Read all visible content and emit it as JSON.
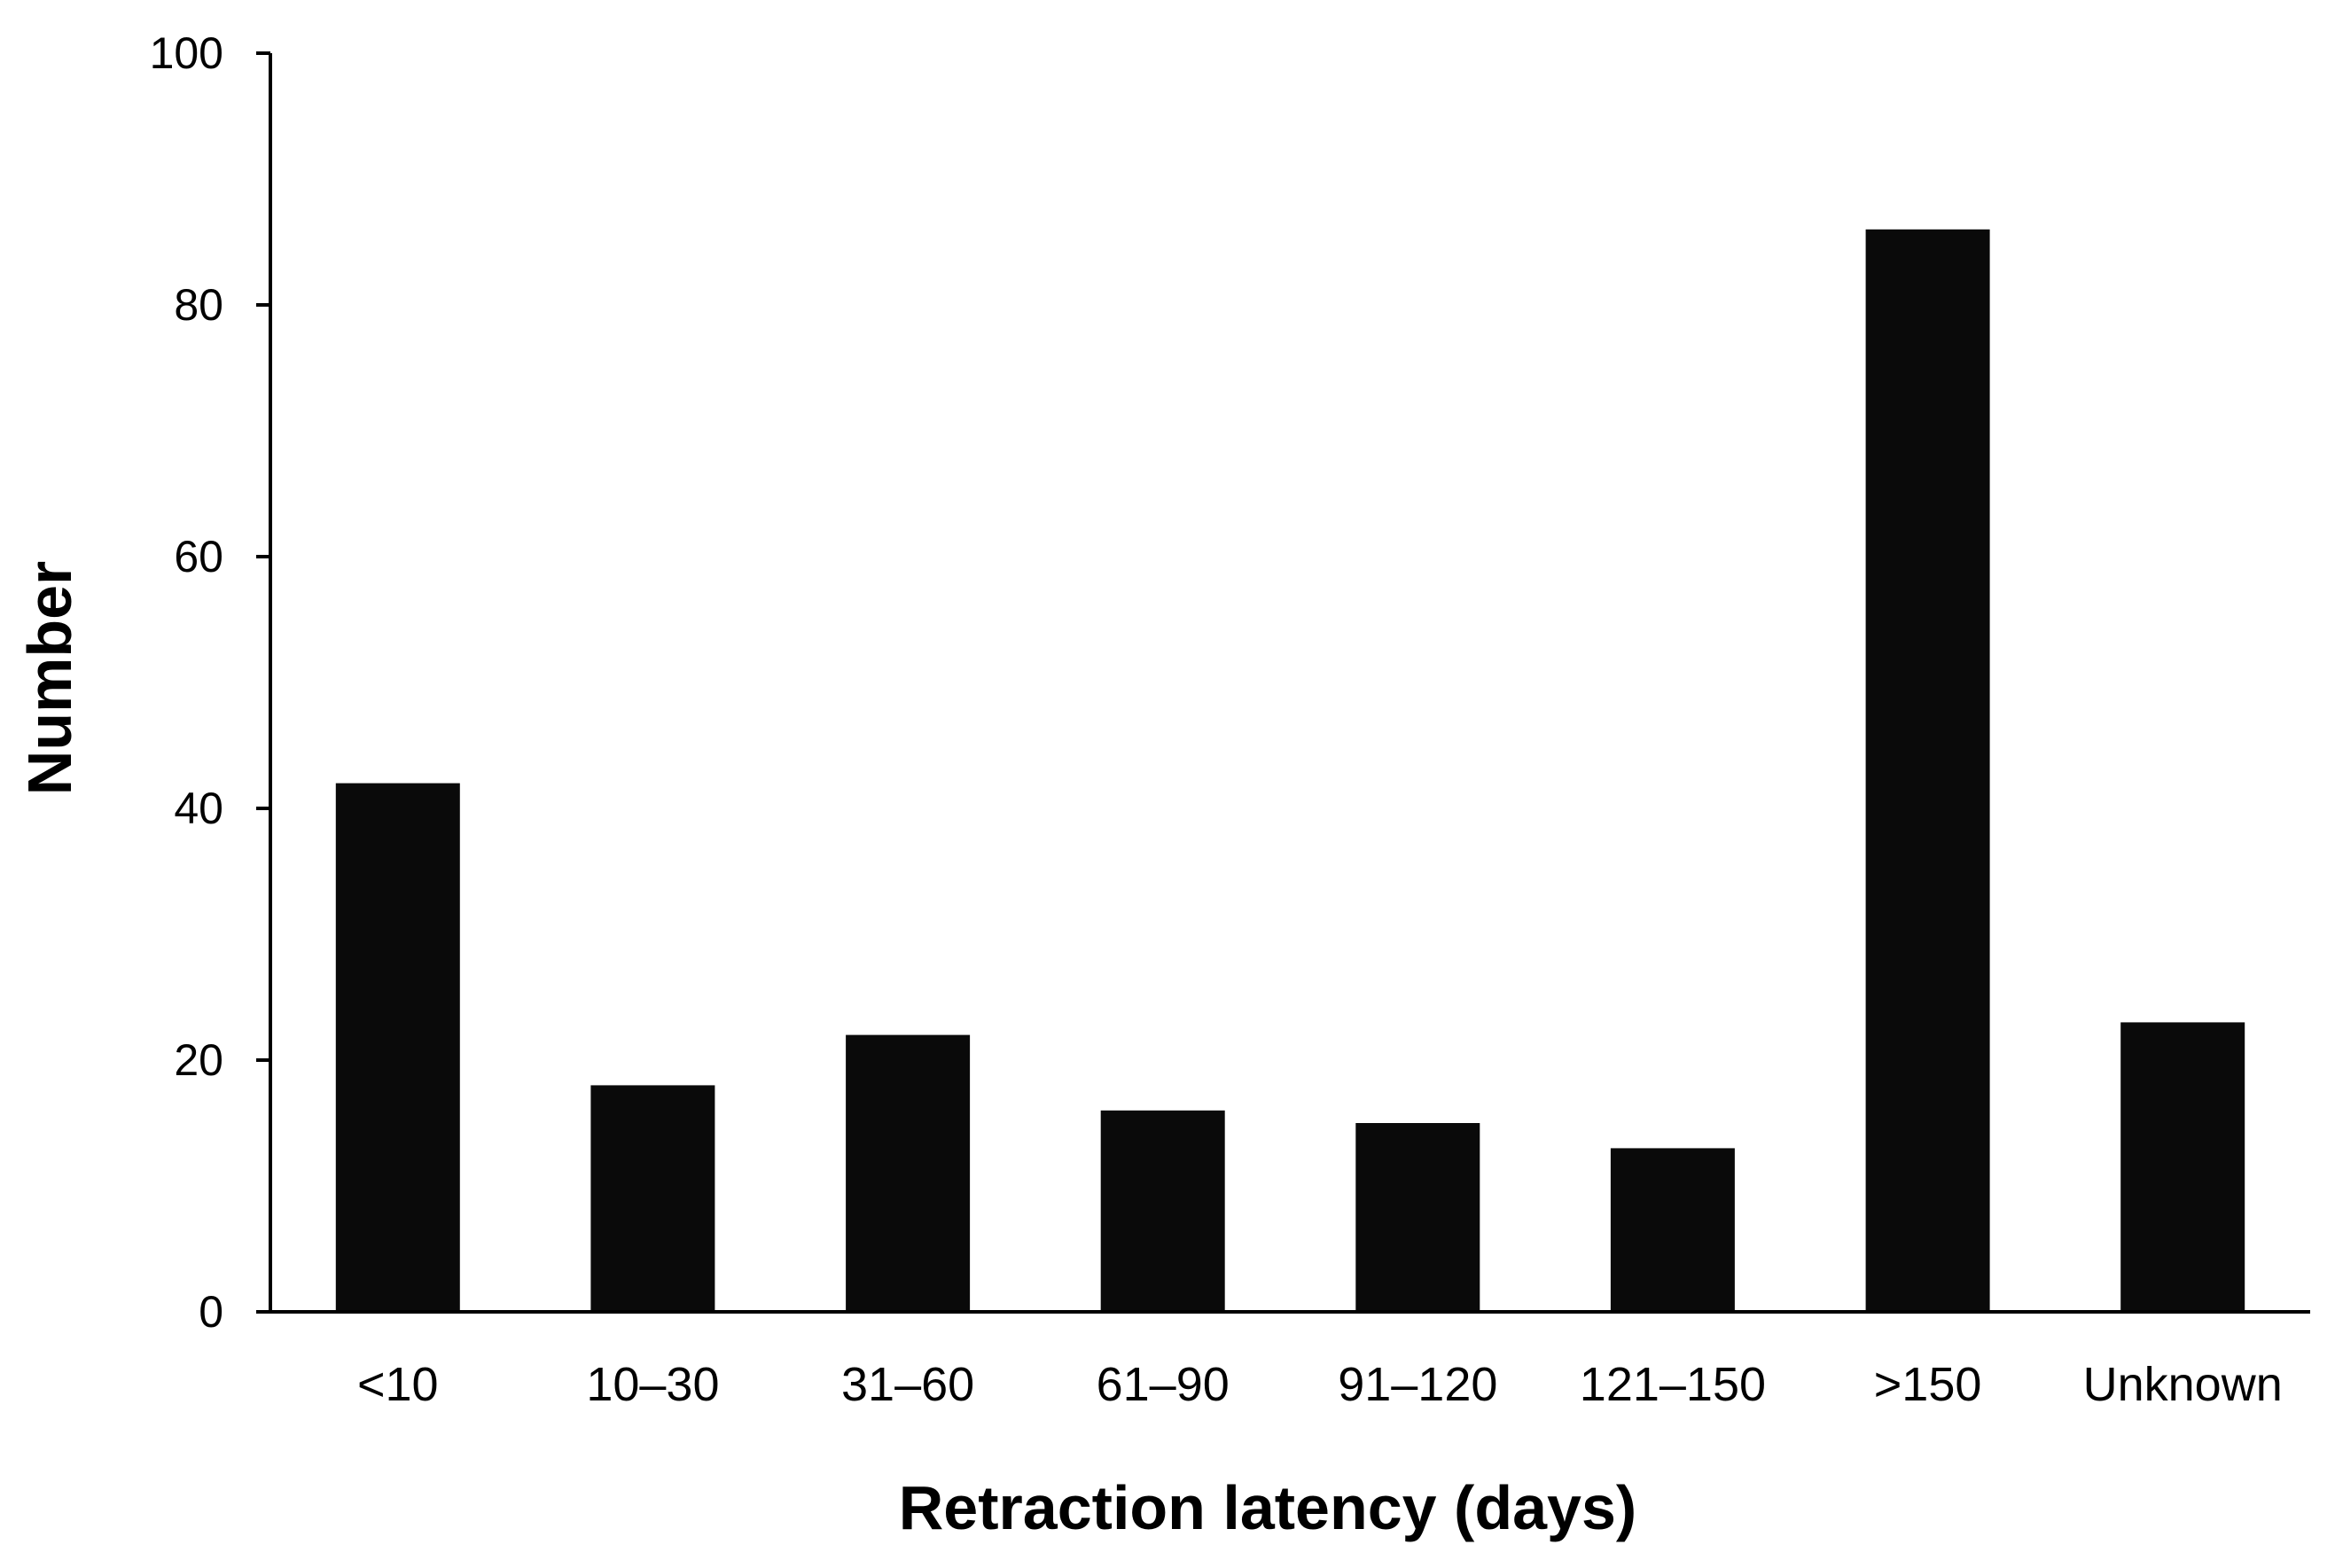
{
  "chart_data": {
    "type": "bar",
    "title": "",
    "xlabel": "Retraction latency (days)",
    "ylabel": "Number",
    "categories": [
      "<10",
      "10–30",
      "31–60",
      "61–90",
      "91–120",
      "121–150",
      ">150",
      "Unknown"
    ],
    "values": [
      42,
      18,
      22,
      16,
      15,
      13,
      86,
      23
    ],
    "ylim": [
      0,
      100
    ],
    "yticks": [
      "0",
      "20",
      "40",
      "60",
      "80",
      "100"
    ],
    "grid": false,
    "legend": "none",
    "bar_color": "#0a0a0a",
    "axis_color": "#000000"
  }
}
